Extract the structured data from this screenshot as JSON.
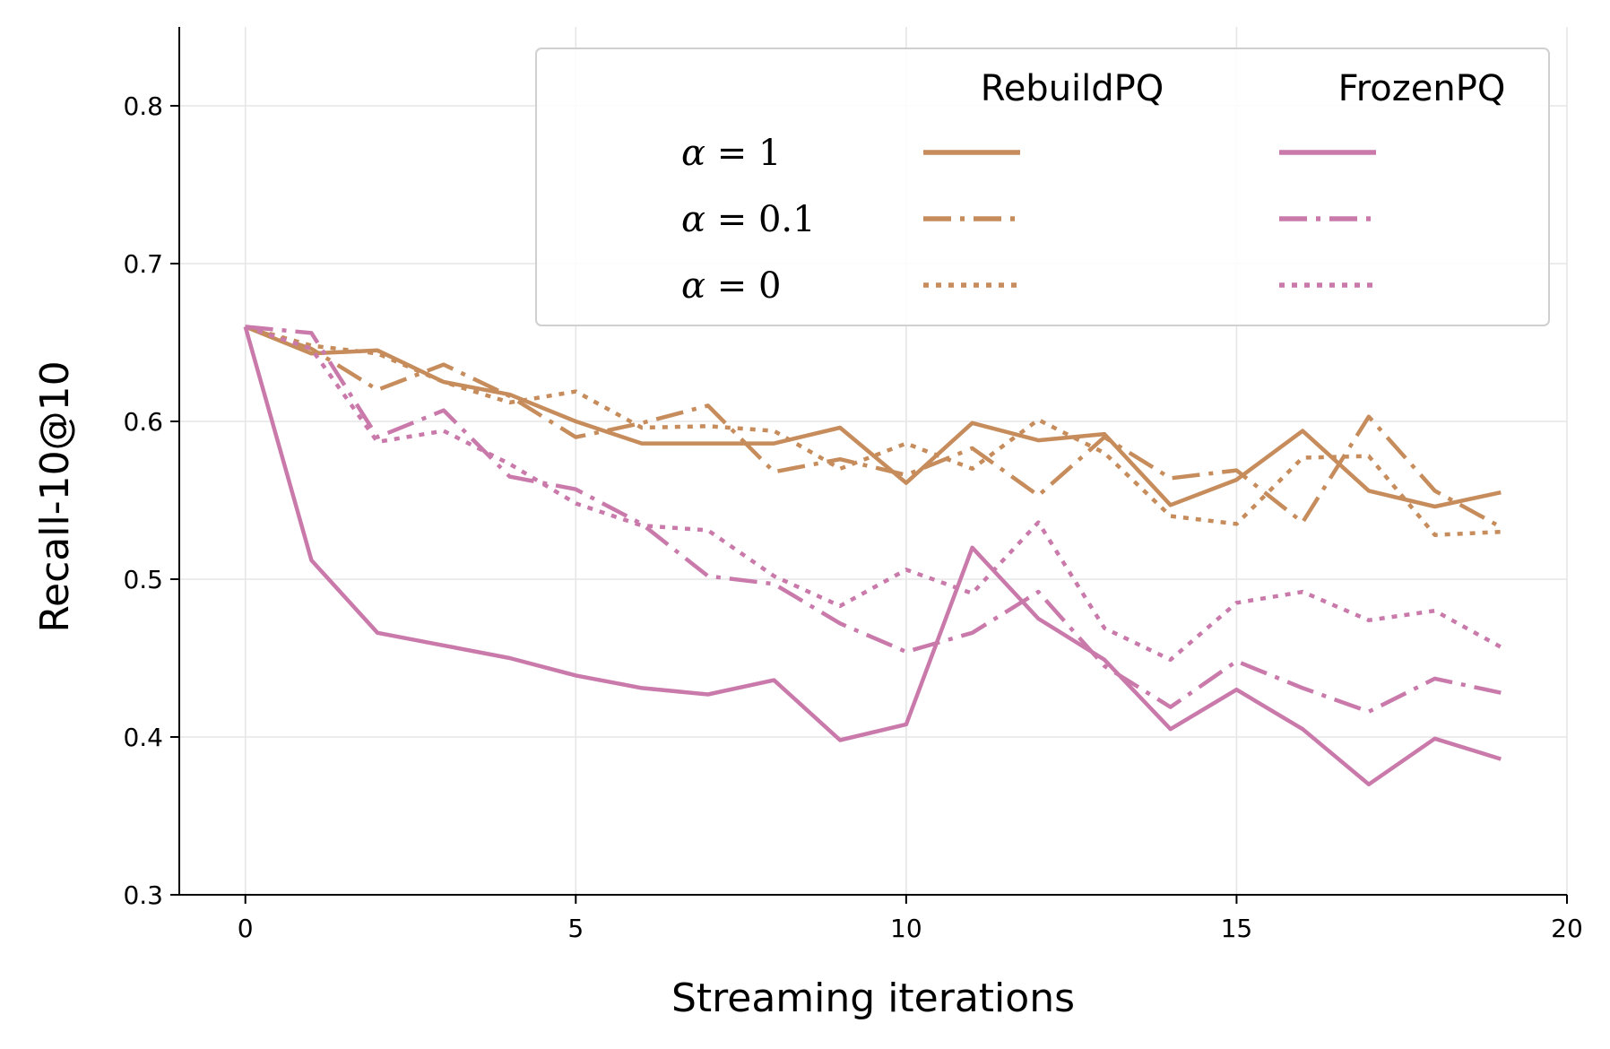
{
  "chart_data": {
    "type": "line",
    "title": "",
    "xlabel": "Streaming iterations",
    "ylabel": "Recall-10@10",
    "xlim": [
      -1,
      20
    ],
    "ylim": [
      0.3,
      0.85
    ],
    "xticks": [
      0,
      5,
      10,
      15,
      20
    ],
    "yticks": [
      0.3,
      0.4,
      0.5,
      0.6,
      0.7,
      0.8
    ],
    "xtick_labels": [
      "0",
      "5",
      "10",
      "15",
      "20"
    ],
    "ytick_labels": [
      "0.3",
      "0.4",
      "0.5",
      "0.6",
      "0.7",
      "0.8"
    ],
    "grid": true,
    "legend": {
      "placement": "top-right",
      "col_headers": [
        "RebuildPQ",
        "FrozenPQ"
      ],
      "row_labels": [
        {
          "symbol": "α",
          "rest": " = 1"
        },
        {
          "symbol": "α",
          "rest": " = 0.1"
        },
        {
          "symbol": "α",
          "rest": " = 0"
        }
      ]
    },
    "colors": {
      "RebuildPQ": "#c68c5c",
      "FrozenPQ": "#c97aab"
    },
    "x": [
      0,
      1,
      2,
      3,
      4,
      5,
      6,
      7,
      8,
      9,
      10,
      11,
      12,
      13,
      14,
      15,
      16,
      17,
      18,
      19
    ],
    "series": [
      {
        "name": "RebuildPQ α = 1",
        "method": "RebuildPQ",
        "alpha": "1",
        "style": "solid",
        "values": [
          0.66,
          0.643,
          0.645,
          0.625,
          0.617,
          0.6,
          0.586,
          0.586,
          0.586,
          0.596,
          0.561,
          0.599,
          0.588,
          0.592,
          0.547,
          0.563,
          0.594,
          0.556,
          0.546,
          0.555
        ]
      },
      {
        "name": "RebuildPQ α = 0.1",
        "method": "RebuildPQ",
        "alpha": "0.1",
        "style": "dashdot",
        "values": [
          0.66,
          0.646,
          0.62,
          0.636,
          0.616,
          0.59,
          0.599,
          0.61,
          0.568,
          0.576,
          0.566,
          0.583,
          0.553,
          0.59,
          0.564,
          0.569,
          0.536,
          0.603,
          0.556,
          0.533
        ]
      },
      {
        "name": "RebuildPQ α = 0",
        "method": "RebuildPQ",
        "alpha": "0",
        "style": "dotted",
        "values": [
          0.66,
          0.648,
          0.643,
          0.625,
          0.612,
          0.619,
          0.596,
          0.597,
          0.594,
          0.57,
          0.586,
          0.57,
          0.601,
          0.58,
          0.54,
          0.535,
          0.577,
          0.578,
          0.528,
          0.53
        ]
      },
      {
        "name": "FrozenPQ α = 1",
        "method": "FrozenPQ",
        "alpha": "1",
        "style": "solid",
        "values": [
          0.66,
          0.512,
          0.466,
          0.458,
          0.45,
          0.439,
          0.431,
          0.427,
          0.436,
          0.398,
          0.408,
          0.52,
          0.475,
          0.449,
          0.405,
          0.43,
          0.405,
          0.37,
          0.399,
          0.386
        ]
      },
      {
        "name": "FrozenPQ α = 0.1",
        "method": "FrozenPQ",
        "alpha": "0.1",
        "style": "dashdot",
        "values": [
          0.66,
          0.656,
          0.59,
          0.607,
          0.565,
          0.557,
          0.535,
          0.502,
          0.497,
          0.472,
          0.454,
          0.466,
          0.492,
          0.445,
          0.419,
          0.448,
          0.431,
          0.416,
          0.437,
          0.428
        ]
      },
      {
        "name": "FrozenPQ α = 0",
        "method": "FrozenPQ",
        "alpha": "0",
        "style": "dotted",
        "values": [
          0.66,
          0.646,
          0.587,
          0.594,
          0.573,
          0.548,
          0.534,
          0.531,
          0.502,
          0.483,
          0.506,
          0.491,
          0.536,
          0.469,
          0.449,
          0.485,
          0.492,
          0.474,
          0.48,
          0.457
        ]
      }
    ]
  }
}
